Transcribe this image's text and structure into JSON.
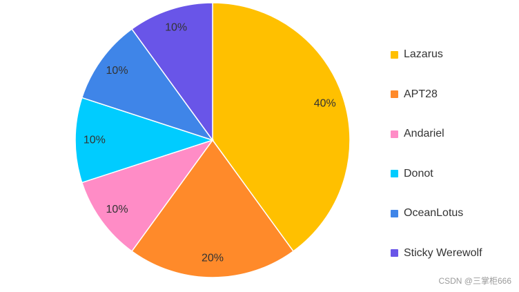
{
  "chart_data": {
    "type": "pie",
    "title": "",
    "legend_position": "right",
    "slices": [
      {
        "name": "Lazarus",
        "value": 40,
        "label": "40%",
        "color": "#FFC000"
      },
      {
        "name": "APT28",
        "value": 20,
        "label": "20%",
        "color": "#FF8A2A"
      },
      {
        "name": "Andariel",
        "value": 10,
        "label": "10%",
        "color": "#FF8CC6"
      },
      {
        "name": "Donot",
        "value": 10,
        "label": "10%",
        "color": "#00CCFF"
      },
      {
        "name": "OceanLotus",
        "value": 10,
        "label": "10%",
        "color": "#3F85E8"
      },
      {
        "name": "Sticky Werewolf",
        "value": 10,
        "label": "10%",
        "color": "#6955E8"
      }
    ]
  },
  "watermark": "CSDN @三掌柜666"
}
